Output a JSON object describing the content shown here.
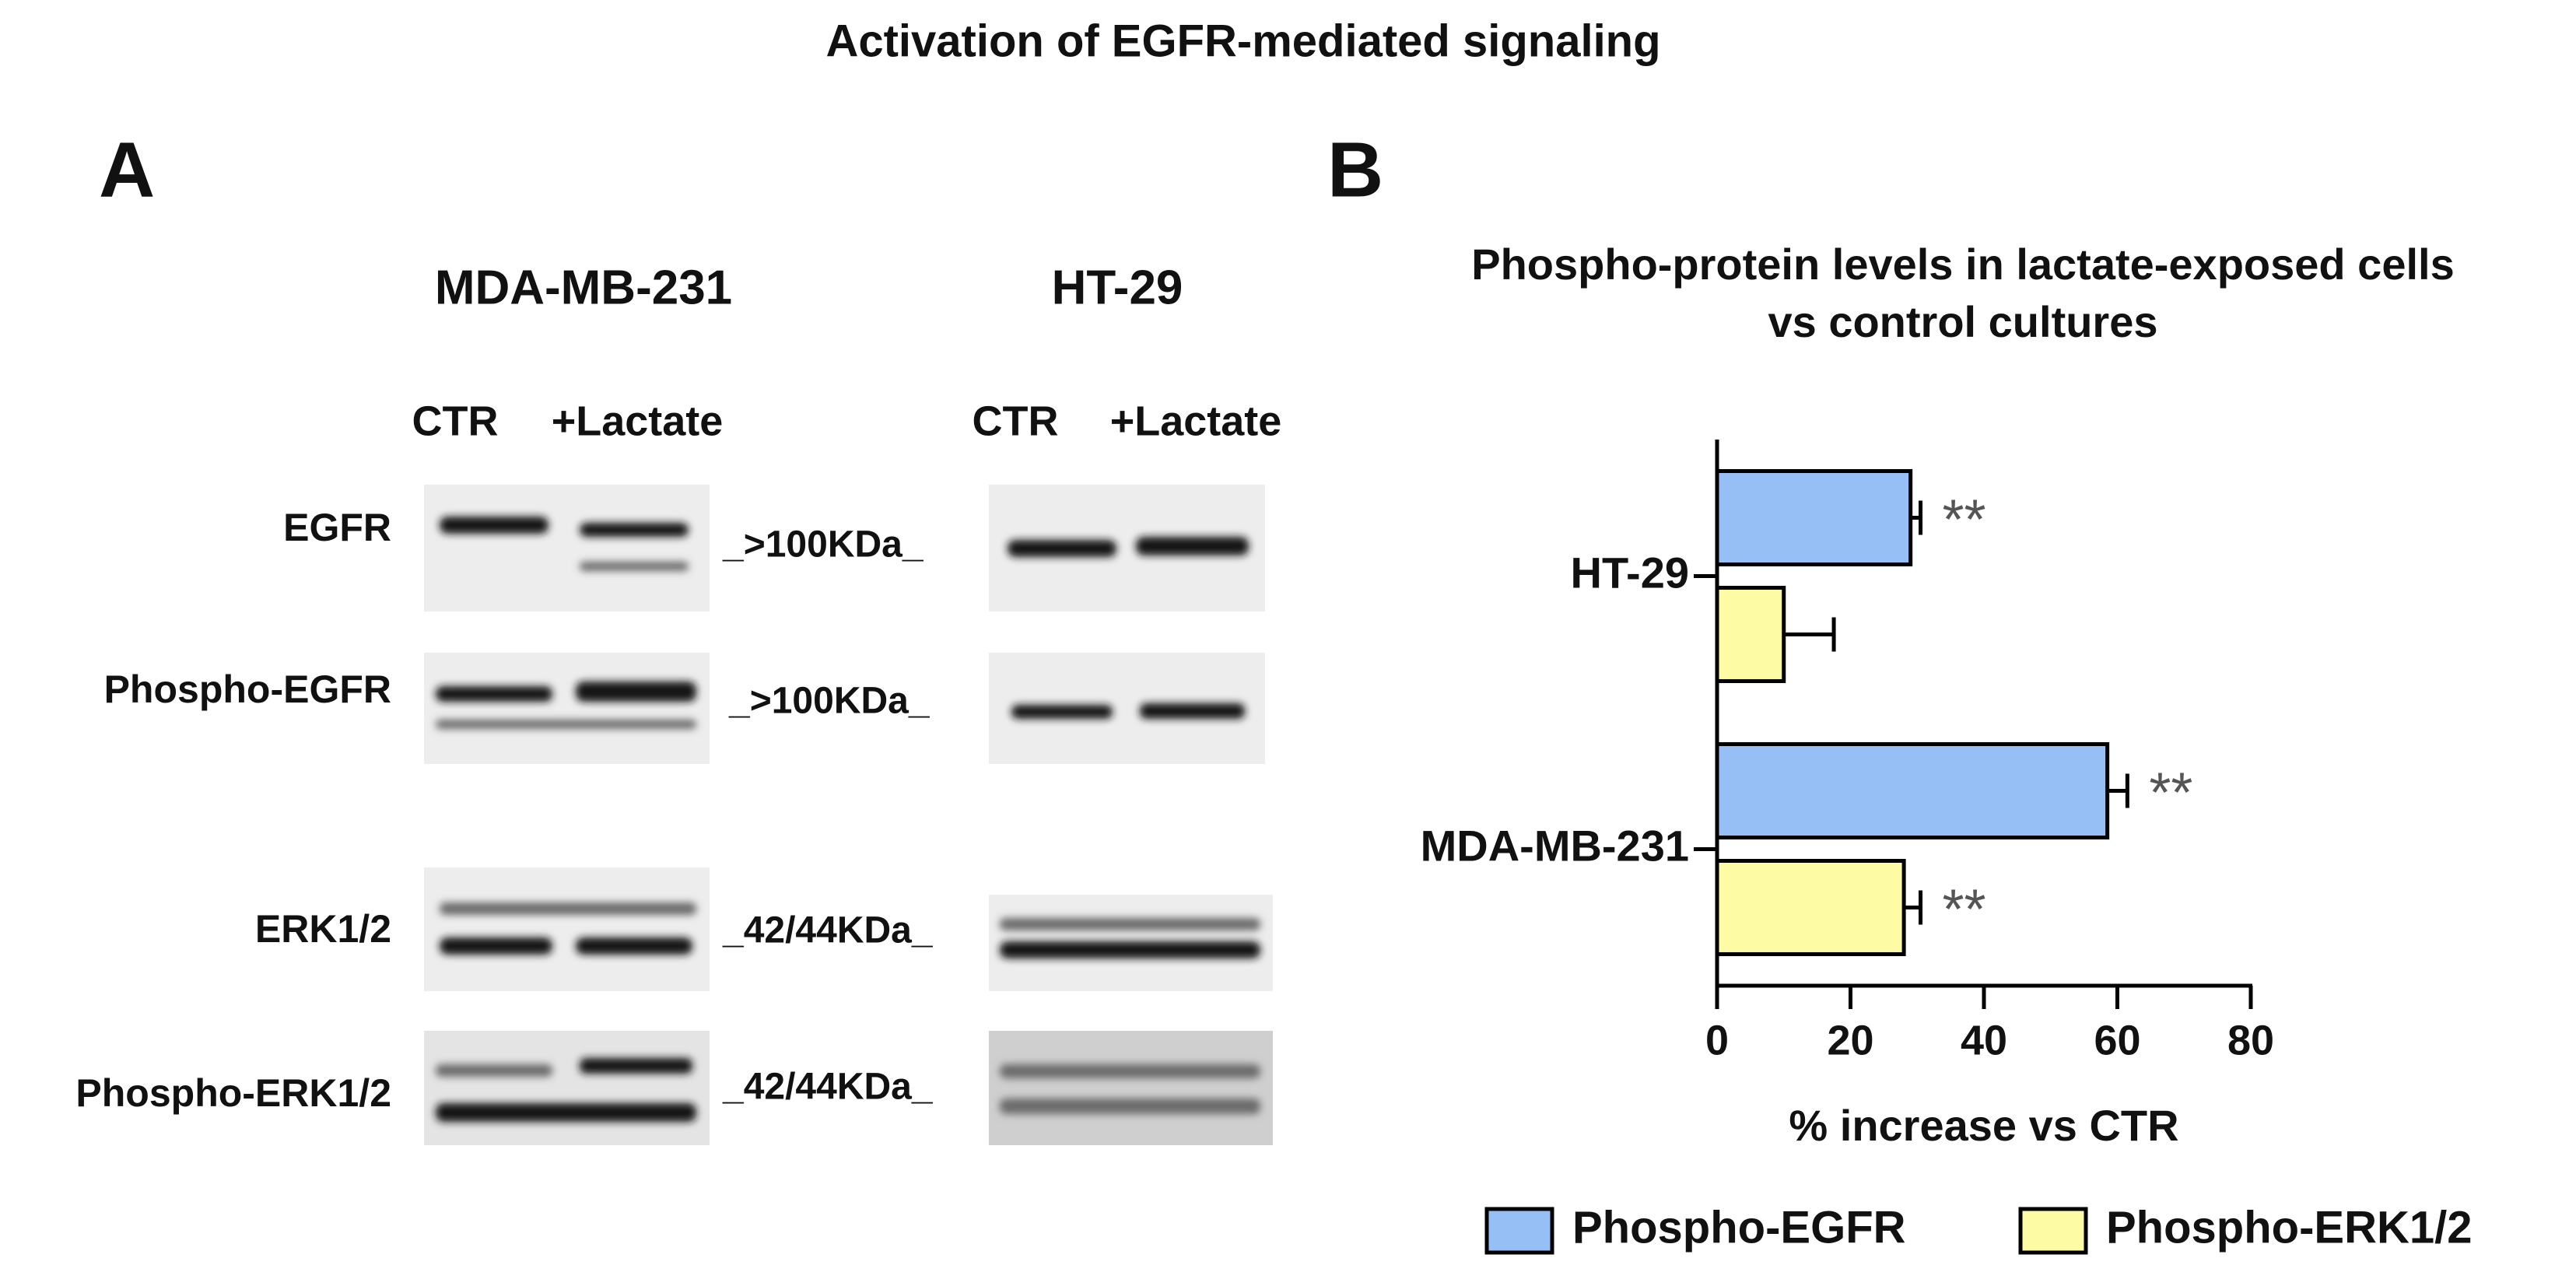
{
  "title": "Activation of EGFR-mediated signaling",
  "panel_a": {
    "label": "A",
    "blots": [
      {
        "cell_line": "MDA-MB-231",
        "lanes": [
          "CTR",
          "+Lactate"
        ]
      },
      {
        "cell_line": "HT-29",
        "lanes": [
          "CTR",
          "+Lactate"
        ]
      }
    ],
    "rows": [
      {
        "protein": "EGFR",
        "size": "_>100KDa_"
      },
      {
        "protein": "Phospho-EGFR",
        "size": "_>100KDa_"
      },
      {
        "protein": "ERK1/2",
        "size": "_42/44KDa_"
      },
      {
        "protein": "Phospho-ERK1/2",
        "size": "_42/44KDa_"
      }
    ]
  },
  "panel_b": {
    "label": "B"
  },
  "chart_data": {
    "type": "hbar",
    "title": [
      "Phospho-protein levels in lactate-exposed cells",
      "vs control cultures"
    ],
    "xlabel": "% increase vs CTR",
    "categories": [
      "HT-29",
      "MDA-MB-231"
    ],
    "series": [
      {
        "name": "Phospho-EGFR",
        "color": "#95bff5",
        "values": [
          29,
          58.5
        ],
        "errors": [
          1.5,
          3
        ],
        "significance": [
          "**",
          "**"
        ]
      },
      {
        "name": "Phospho-ERK1/2",
        "color": "#fdfba4",
        "values": [
          10,
          28
        ],
        "errors": [
          7.5,
          2.5
        ],
        "significance": [
          null,
          "**"
        ]
      }
    ],
    "xlim": [
      0,
      80
    ],
    "xticks": [
      0,
      20,
      40,
      60,
      80
    ],
    "legend": "bottom"
  }
}
